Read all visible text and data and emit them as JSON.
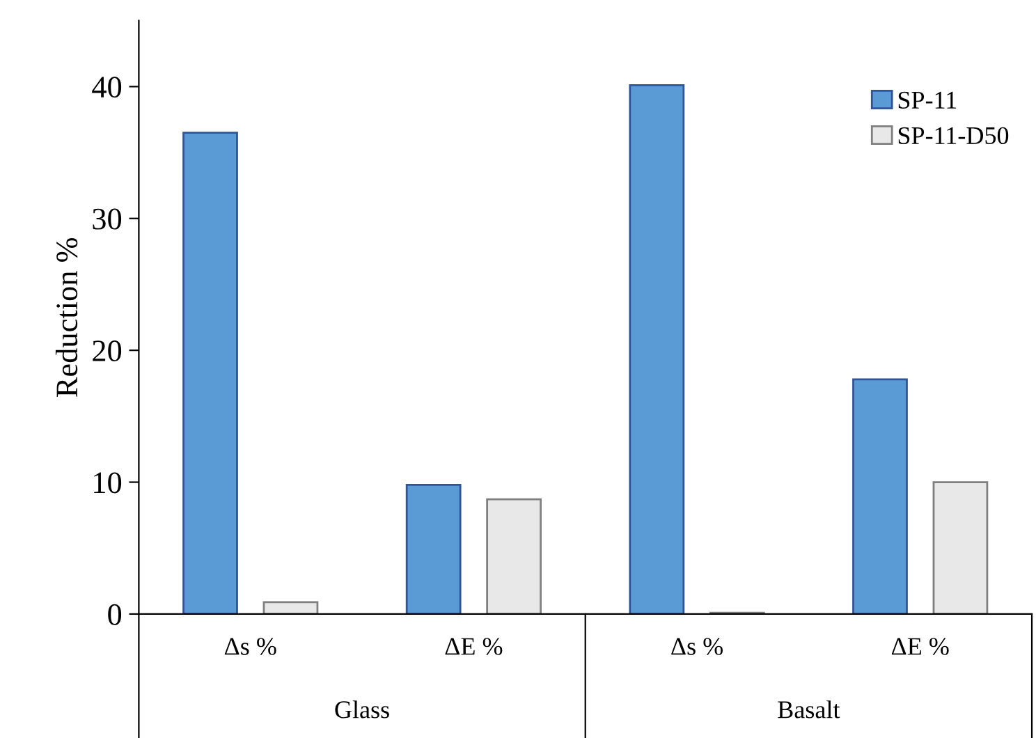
{
  "chart_data": {
    "type": "bar",
    "ylabel": "Reduction %",
    "categories": [
      "Δs %",
      "ΔE %",
      "Δs %",
      "ΔE %"
    ],
    "series": [
      {
        "name": "SP-11",
        "color": "#5b9bd5",
        "values": [
          36.5,
          9.8,
          40.1,
          17.8
        ]
      },
      {
        "name": "SP-11-D50",
        "color": "#e8e8e8",
        "values": [
          0.9,
          8.7,
          0.1,
          10.0
        ]
      }
    ],
    "annotations": [
      "Glass",
      "Basalt"
    ],
    "ylim": [
      0,
      45
    ],
    "yticks": [
      0,
      10,
      20,
      30,
      40
    ],
    "grid": false,
    "legend": "top right"
  }
}
